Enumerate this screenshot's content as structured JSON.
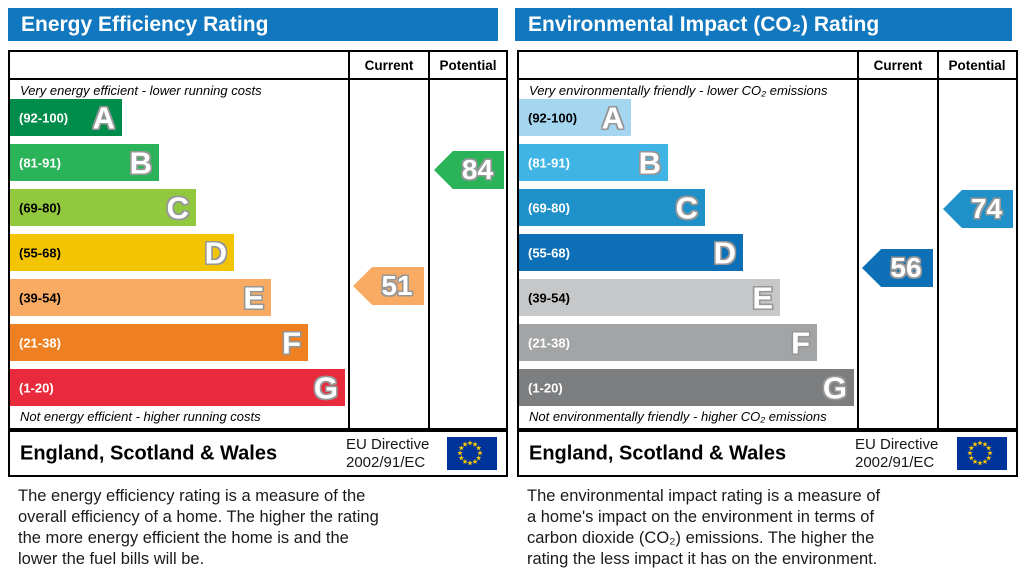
{
  "colors": {
    "header_bg": "#1177be",
    "header_text": "#ffffff",
    "border": "#000000",
    "eu_flag_bg": "#003399",
    "eu_flag_stars": "#ffcc00"
  },
  "panels": [
    {
      "title": "Energy Efficiency Rating",
      "columns": {
        "current": "Current",
        "potential": "Potential"
      },
      "top_caption": "Very energy efficient - lower running costs",
      "bottom_caption": "Not energy efficient - higher running costs",
      "bands": [
        {
          "label": "(92-100)",
          "letter": "A",
          "min": 92,
          "max": 100,
          "color": "#008c4a",
          "label_color": "#ffffff"
        },
        {
          "label": "(81-91)",
          "letter": "B",
          "min": 81,
          "max": 91,
          "color": "#2bb35a",
          "label_color": "#ffffff"
        },
        {
          "label": "(69-80)",
          "letter": "C",
          "min": 69,
          "max": 80,
          "color": "#92c83e",
          "label_color": "#000000"
        },
        {
          "label": "(55-68)",
          "letter": "D",
          "min": 55,
          "max": 68,
          "color": "#f3c402",
          "label_color": "#000000"
        },
        {
          "label": "(39-54)",
          "letter": "E",
          "min": 39,
          "max": 54,
          "color": "#f9ab63",
          "label_color": "#000000"
        },
        {
          "label": "(21-38)",
          "letter": "F",
          "min": 21,
          "max": 38,
          "color": "#ee8022",
          "label_color": "#ffffff"
        },
        {
          "label": "(1-20)",
          "letter": "G",
          "min": 1,
          "max": 20,
          "color": "#e92a3c",
          "label_color": "#ffffff"
        }
      ],
      "current": 51,
      "potential": 84,
      "footer": {
        "region": "England, Scotland & Wales",
        "directive": [
          "EU Directive",
          "2002/91/EC"
        ]
      },
      "description_lines": [
        "The energy efficiency rating is a measure of the",
        "overall efficiency of a home. The higher the rating",
        "the more energy efficient the home is and the",
        "lower the fuel bills will be."
      ]
    },
    {
      "title": "Environmental Impact (CO₂) Rating",
      "columns": {
        "current": "Current",
        "potential": "Potential"
      },
      "top_caption": "Very environmentally friendly - lower CO₂ emissions",
      "bottom_caption": "Not environmentally friendly - higher CO₂ emissions",
      "bands": [
        {
          "label": "(92-100)",
          "letter": "A",
          "min": 92,
          "max": 100,
          "color": "#a5d6f0",
          "label_color": "#000000"
        },
        {
          "label": "(81-91)",
          "letter": "B",
          "min": 81,
          "max": 91,
          "color": "#41b4e6",
          "label_color": "#ffffff"
        },
        {
          "label": "(69-80)",
          "letter": "C",
          "min": 69,
          "max": 80,
          "color": "#2090c8",
          "label_color": "#ffffff"
        },
        {
          "label": "(55-68)",
          "letter": "D",
          "min": 55,
          "max": 68,
          "color": "#0d6fb5",
          "label_color": "#ffffff"
        },
        {
          "label": "(39-54)",
          "letter": "E",
          "min": 39,
          "max": 54,
          "color": "#c6c7c9",
          "label_color": "#000000"
        },
        {
          "label": "(21-38)",
          "letter": "F",
          "min": 21,
          "max": 38,
          "color": "#a2a4a6",
          "label_color": "#ffffff"
        },
        {
          "label": "(1-20)",
          "letter": "G",
          "min": 1,
          "max": 20,
          "color": "#7c7e80",
          "label_color": "#ffffff"
        }
      ],
      "current": 56,
      "potential": 74,
      "footer": {
        "region": "England, Scotland & Wales",
        "directive": [
          "EU Directive",
          "2002/91/EC"
        ]
      },
      "description_lines": [
        "The environmental impact rating is a measure of",
        "a home's impact on the environment in terms of",
        "carbon dioxide (CO₂) emissions. The higher the",
        "rating the less impact it has on the environment."
      ]
    }
  ],
  "chart_data": [
    {
      "type": "bar",
      "title": "Energy Efficiency Rating",
      "categories": [
        "A",
        "B",
        "C",
        "D",
        "E",
        "F",
        "G"
      ],
      "band_ranges": [
        "92-100",
        "81-91",
        "69-80",
        "55-68",
        "39-54",
        "21-38",
        "1-20"
      ],
      "series": [
        {
          "name": "Current",
          "value": 51,
          "band": "E"
        },
        {
          "name": "Potential",
          "value": 84,
          "band": "B"
        }
      ],
      "scale": [
        1,
        100
      ],
      "legend": [
        "Current",
        "Potential"
      ],
      "legend_position": "top-right"
    },
    {
      "type": "bar",
      "title": "Environmental Impact (CO₂) Rating",
      "categories": [
        "A",
        "B",
        "C",
        "D",
        "E",
        "F",
        "G"
      ],
      "band_ranges": [
        "92-100",
        "81-91",
        "69-80",
        "55-68",
        "39-54",
        "21-38",
        "1-20"
      ],
      "series": [
        {
          "name": "Current",
          "value": 56,
          "band": "D"
        },
        {
          "name": "Potential",
          "value": 74,
          "band": "C"
        }
      ],
      "scale": [
        1,
        100
      ],
      "legend": [
        "Current",
        "Potential"
      ],
      "legend_position": "top-right"
    }
  ]
}
